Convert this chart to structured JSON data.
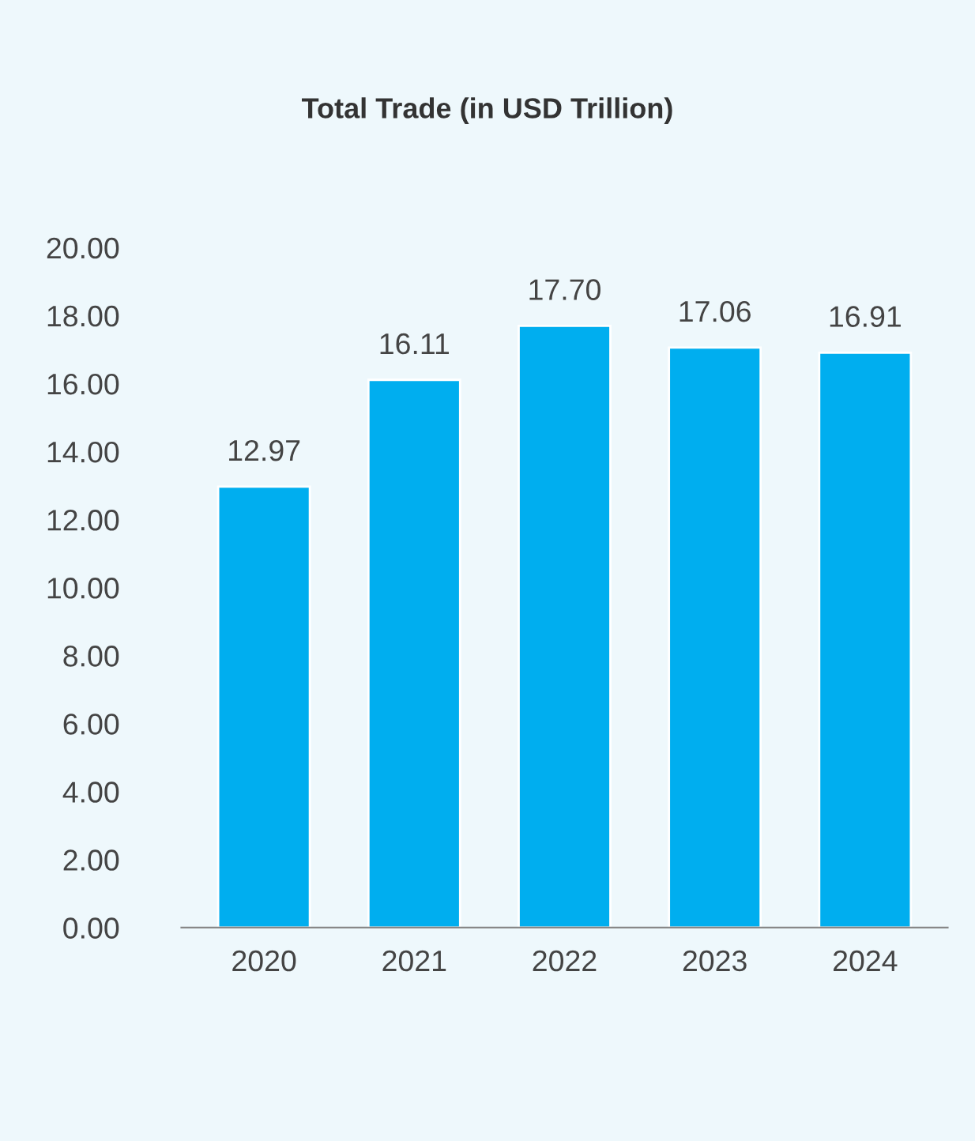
{
  "chart_data": {
    "type": "bar",
    "title": "Total Trade (in USD Trillion)",
    "categories": [
      "2020",
      "2021",
      "2022",
      "2023",
      "2024"
    ],
    "values": [
      12.97,
      16.11,
      17.7,
      17.06,
      16.91
    ],
    "value_labels": [
      "12.97",
      "16.11",
      "17.70",
      "17.06",
      "16.91"
    ],
    "color": "#00aeef",
    "ylim": [
      0,
      20
    ],
    "yticks": [
      {
        "value": 0,
        "label": "0.00"
      },
      {
        "value": 2,
        "label": "2.00"
      },
      {
        "value": 4,
        "label": "4.00"
      },
      {
        "value": 6,
        "label": "6.00"
      },
      {
        "value": 8,
        "label": "8.00"
      },
      {
        "value": 10,
        "label": "10.00"
      },
      {
        "value": 12,
        "label": "12.00"
      },
      {
        "value": 14,
        "label": "14.00"
      },
      {
        "value": 16,
        "label": "16.00"
      },
      {
        "value": 18,
        "label": "18.00"
      },
      {
        "value": 20,
        "label": "20.00"
      }
    ],
    "grid": false,
    "legend": false
  }
}
